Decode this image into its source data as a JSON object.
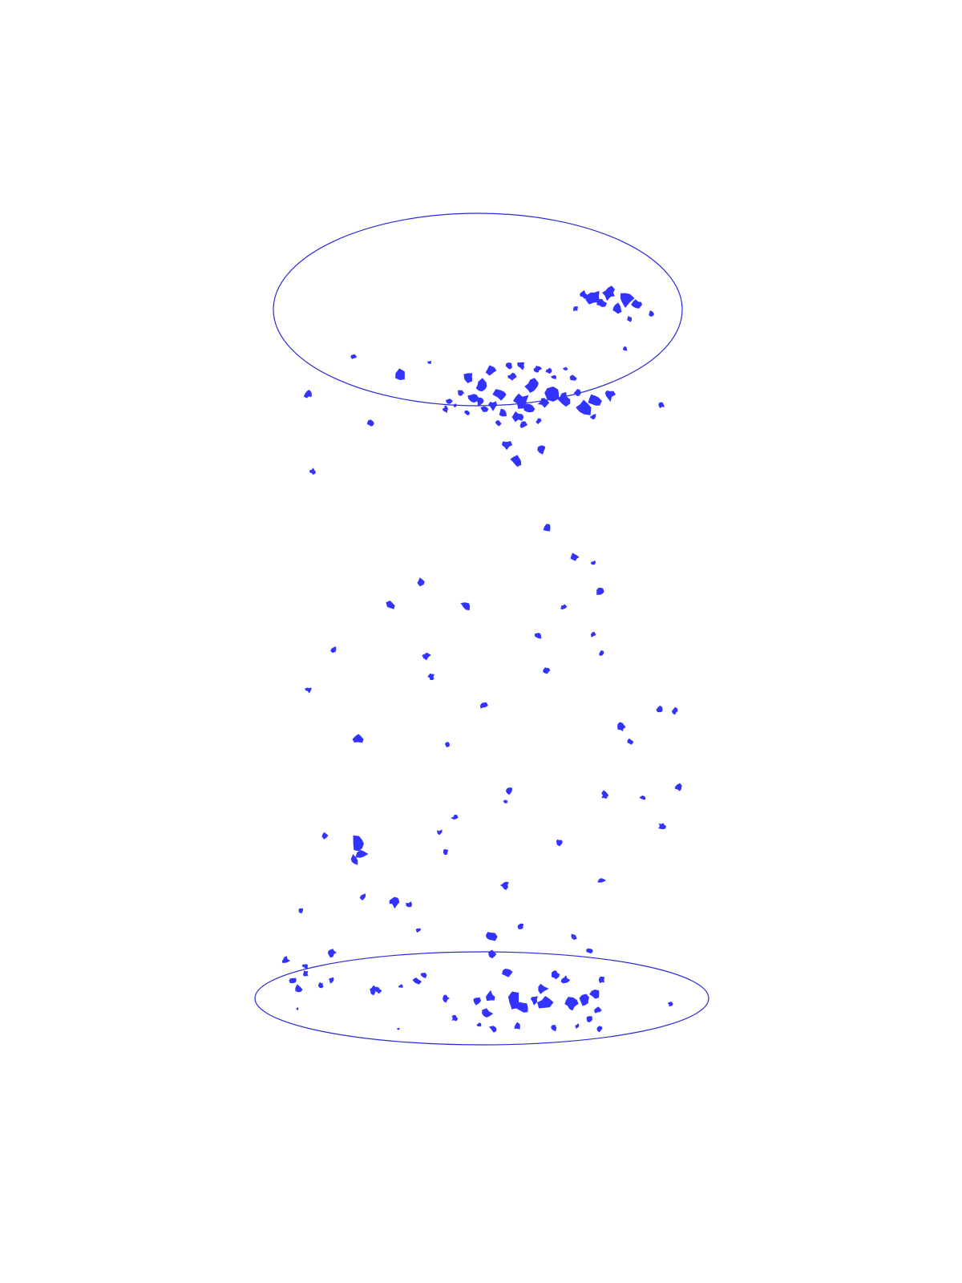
{
  "diagram": {
    "colors": {
      "background": "#ffffff",
      "particle": "#3333ff",
      "ring_outline": "#2a2ad4"
    },
    "top_ring": {
      "name": "top-ring",
      "cluster_count": 62
    },
    "bottom_ring": {
      "name": "bottom-ring",
      "cluster_count": 58
    },
    "falling_particles": {
      "name": "falling-particles",
      "count": 64
    }
  }
}
